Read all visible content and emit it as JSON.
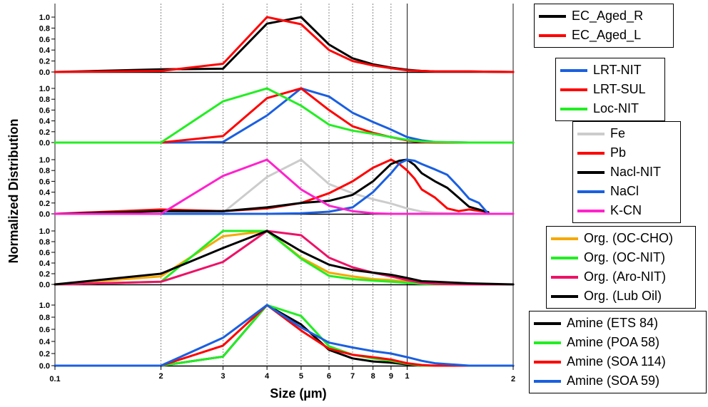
{
  "chart": {
    "xlabel": "Size (µm)",
    "ylabel": "Normalized Distribution"
  },
  "chart_data": {
    "type": "line",
    "xlabel": "Size (µm)",
    "ylabel": "Normalized Distribution",
    "x_scale": "log",
    "xlim": [
      0.1,
      2
    ],
    "x_tick_labels": [
      "0.1",
      "2",
      "3",
      "4",
      "5",
      "6",
      "7",
      "8",
      "9",
      "1",
      "2"
    ],
    "y_tick_labels": [
      "0.0",
      "0.2",
      "0.4",
      "0.6",
      "0.8",
      "1.0"
    ],
    "ylim": [
      0,
      1
    ],
    "panels": [
      {
        "legend": [
          "EC_Aged_R",
          "EC_Aged_L"
        ],
        "series": [
          {
            "name": "EC_Aged_R",
            "color": "#000000",
            "x": [
              0.1,
              0.2,
              0.3,
              0.4,
              0.5,
              0.6,
              0.7,
              0.8,
              0.9,
              1.0,
              1.1,
              1.2,
              1.5,
              2.0
            ],
            "y": [
              0.0,
              0.05,
              0.06,
              0.88,
              1.0,
              0.5,
              0.25,
              0.14,
              0.08,
              0.04,
              0.02,
              0.01,
              0.01,
              0.0
            ]
          },
          {
            "name": "EC_Aged_L",
            "color": "#ff0000",
            "x": [
              0.1,
              0.2,
              0.3,
              0.4,
              0.5,
              0.6,
              0.7,
              0.8,
              0.9,
              1.0,
              1.1,
              1.2,
              1.5,
              2.0
            ],
            "y": [
              0.0,
              0.02,
              0.15,
              1.0,
              0.87,
              0.4,
              0.2,
              0.12,
              0.07,
              0.03,
              0.02,
              0.01,
              0.01,
              0.0
            ]
          }
        ]
      },
      {
        "legend": [
          "LRT-NIT",
          "LRT-SUL",
          "Loc-NIT"
        ],
        "series": [
          {
            "name": "LRT-NIT",
            "color": "#1a5fe0",
            "x": [
              0.1,
              0.2,
              0.3,
              0.4,
              0.5,
              0.6,
              0.7,
              0.8,
              0.9,
              1.0,
              1.1,
              1.2,
              1.5,
              2.0
            ],
            "y": [
              0.0,
              0.0,
              0.01,
              0.5,
              1.0,
              0.85,
              0.55,
              0.38,
              0.24,
              0.1,
              0.04,
              0.01,
              0.0,
              0.0
            ]
          },
          {
            "name": "LRT-SUL",
            "color": "#ff0000",
            "x": [
              0.1,
              0.2,
              0.3,
              0.4,
              0.5,
              0.6,
              0.7,
              0.8,
              0.9,
              1.0,
              1.1,
              1.2,
              1.5,
              2.0
            ],
            "y": [
              0.0,
              0.0,
              0.12,
              0.82,
              1.0,
              0.6,
              0.3,
              0.18,
              0.1,
              0.04,
              0.01,
              0.0,
              0.0,
              0.0
            ]
          },
          {
            "name": "Loc-NIT",
            "color": "#22ee22",
            "x": [
              0.1,
              0.2,
              0.3,
              0.4,
              0.5,
              0.6,
              0.7,
              0.8,
              0.9,
              1.0,
              1.1,
              1.2,
              1.5,
              2.0
            ],
            "y": [
              0.0,
              0.0,
              0.76,
              1.0,
              0.68,
              0.33,
              0.22,
              0.16,
              0.1,
              0.05,
              0.02,
              0.01,
              0.0,
              0.0
            ]
          }
        ]
      },
      {
        "legend": [
          "Fe",
          "Pb",
          "Nacl-NIT",
          "NaCl",
          "K-CN"
        ],
        "series": [
          {
            "name": "Fe",
            "color": "#cccccc",
            "x": [
              0.1,
              0.2,
              0.3,
              0.4,
              0.5,
              0.6,
              0.7,
              0.8,
              0.9,
              1.0,
              1.1,
              1.2,
              1.5,
              2.0
            ],
            "y": [
              0.0,
              0.0,
              0.02,
              0.68,
              1.0,
              0.55,
              0.38,
              0.27,
              0.19,
              0.1,
              0.04,
              0.02,
              0.0,
              0.0
            ]
          },
          {
            "name": "Pb",
            "color": "#ff0000",
            "x": [
              0.1,
              0.2,
              0.3,
              0.4,
              0.5,
              0.6,
              0.7,
              0.8,
              0.9,
              0.95,
              1.0,
              1.05,
              1.1,
              1.2,
              1.3,
              1.4,
              1.5,
              1.7
            ],
            "y": [
              0.0,
              0.08,
              0.05,
              0.1,
              0.2,
              0.38,
              0.6,
              0.85,
              1.0,
              0.92,
              0.8,
              0.65,
              0.45,
              0.3,
              0.1,
              0.05,
              0.08,
              0.03
            ]
          },
          {
            "name": "Nacl-NIT",
            "color": "#000000",
            "x": [
              0.1,
              0.2,
              0.3,
              0.4,
              0.5,
              0.6,
              0.7,
              0.8,
              0.9,
              0.95,
              1.0,
              1.05,
              1.1,
              1.2,
              1.3,
              1.4,
              1.5,
              1.7
            ],
            "y": [
              0.0,
              0.05,
              0.05,
              0.12,
              0.2,
              0.24,
              0.35,
              0.6,
              0.92,
              0.98,
              1.0,
              0.9,
              0.75,
              0.6,
              0.48,
              0.3,
              0.13,
              0.03
            ]
          },
          {
            "name": "NaCl",
            "color": "#1a5fe0",
            "x": [
              0.1,
              0.2,
              0.3,
              0.4,
              0.5,
              0.6,
              0.7,
              0.8,
              0.9,
              0.95,
              1.0,
              1.05,
              1.1,
              1.2,
              1.3,
              1.4,
              1.5,
              1.6,
              1.7
            ],
            "y": [
              0.0,
              0.0,
              0.0,
              0.0,
              0.01,
              0.04,
              0.12,
              0.4,
              0.75,
              0.93,
              1.0,
              0.98,
              0.92,
              0.82,
              0.72,
              0.5,
              0.28,
              0.2,
              0.0
            ]
          },
          {
            "name": "K-CN",
            "color": "#ff22cc",
            "x": [
              0.1,
              0.2,
              0.3,
              0.4,
              0.5,
              0.6,
              0.7,
              0.8,
              0.9,
              1.0,
              1.2,
              1.5,
              2.0
            ],
            "y": [
              0.0,
              0.0,
              0.7,
              1.0,
              0.45,
              0.15,
              0.05,
              0.01,
              0.0,
              0.0,
              0.0,
              0.0,
              0.0
            ]
          }
        ]
      },
      {
        "legend": [
          "Org. (OC-CHO)",
          "Org. (OC-NIT)",
          "Org. (Aro-NIT)",
          "Org. (Lub Oil)"
        ],
        "series": [
          {
            "name": "Org. (OC-CHO)",
            "color": "#f5a800",
            "x": [
              0.1,
              0.2,
              0.3,
              0.4,
              0.5,
              0.6,
              0.7,
              0.8,
              0.9,
              1.0,
              1.1,
              1.2,
              1.5,
              2.0
            ],
            "y": [
              0.0,
              0.15,
              0.9,
              1.0,
              0.5,
              0.22,
              0.15,
              0.1,
              0.08,
              0.05,
              0.02,
              0.01,
              0.0,
              0.0
            ]
          },
          {
            "name": "Org. (OC-NIT)",
            "color": "#22ee22",
            "x": [
              0.1,
              0.2,
              0.3,
              0.4,
              0.5,
              0.6,
              0.7,
              0.8,
              0.9,
              1.0,
              1.1,
              1.2,
              1.5,
              2.0
            ],
            "y": [
              0.0,
              0.05,
              1.0,
              1.0,
              0.48,
              0.16,
              0.1,
              0.07,
              0.05,
              0.03,
              0.01,
              0.0,
              0.0,
              0.0
            ]
          },
          {
            "name": "Org. (Aro-NIT)",
            "color": "#ee1166",
            "x": [
              0.1,
              0.2,
              0.3,
              0.4,
              0.5,
              0.6,
              0.7,
              0.8,
              0.9,
              1.0,
              1.1,
              1.2,
              1.5,
              2.0
            ],
            "y": [
              0.0,
              0.05,
              0.42,
              1.0,
              0.92,
              0.5,
              0.32,
              0.22,
              0.15,
              0.08,
              0.03,
              0.01,
              0.0,
              0.0
            ]
          },
          {
            "name": "Org. (Lub Oil)",
            "color": "#000000",
            "x": [
              0.1,
              0.2,
              0.3,
              0.4,
              0.5,
              0.6,
              0.7,
              0.8,
              0.9,
              1.0,
              1.1,
              1.2,
              1.5,
              2.0
            ],
            "y": [
              0.0,
              0.2,
              0.68,
              1.0,
              0.62,
              0.37,
              0.27,
              0.22,
              0.18,
              0.12,
              0.06,
              0.05,
              0.02,
              0.0
            ]
          }
        ]
      },
      {
        "legend": [
          "Amine (ETS 84)",
          "Amine (POA 58)",
          "Amine (SOA 114)",
          "Amine (SOA 59)"
        ],
        "series": [
          {
            "name": "Amine (ETS 84)",
            "color": "#000000",
            "x": [
              0.1,
              0.2,
              0.3,
              0.4,
              0.5,
              0.6,
              0.7,
              0.8,
              0.9,
              1.0,
              1.1,
              1.2,
              1.5,
              2.0
            ],
            "y": [
              0.0,
              0.0,
              0.15,
              1.0,
              0.68,
              0.26,
              0.12,
              0.07,
              0.05,
              0.02,
              0.0,
              0.0,
              0.0,
              0.0
            ]
          },
          {
            "name": "Amine (POA 58)",
            "color": "#22ee22",
            "x": [
              0.1,
              0.2,
              0.3,
              0.4,
              0.5,
              0.6,
              0.7,
              0.8,
              0.9,
              1.0,
              1.1,
              1.2,
              1.5,
              2.0
            ],
            "y": [
              0.0,
              0.0,
              0.15,
              1.0,
              0.82,
              0.32,
              0.18,
              0.12,
              0.08,
              0.03,
              0.0,
              0.0,
              0.0,
              0.0
            ]
          },
          {
            "name": "Amine (SOA 114)",
            "color": "#ff0000",
            "x": [
              0.1,
              0.2,
              0.3,
              0.4,
              0.5,
              0.6,
              0.7,
              0.8,
              0.9,
              1.0,
              1.1,
              1.2,
              1.5,
              2.0
            ],
            "y": [
              0.0,
              0.0,
              0.33,
              1.0,
              0.58,
              0.28,
              0.18,
              0.14,
              0.1,
              0.04,
              0.01,
              0.0,
              0.0,
              0.0
            ]
          },
          {
            "name": "Amine (SOA 59)",
            "color": "#1a5fe0",
            "x": [
              0.1,
              0.2,
              0.3,
              0.4,
              0.5,
              0.6,
              0.7,
              0.8,
              0.9,
              1.0,
              1.1,
              1.2,
              1.5,
              2.0
            ],
            "y": [
              0.0,
              0.0,
              0.46,
              1.0,
              0.63,
              0.38,
              0.3,
              0.24,
              0.2,
              0.14,
              0.08,
              0.04,
              0.0,
              0.0
            ]
          }
        ]
      }
    ]
  }
}
